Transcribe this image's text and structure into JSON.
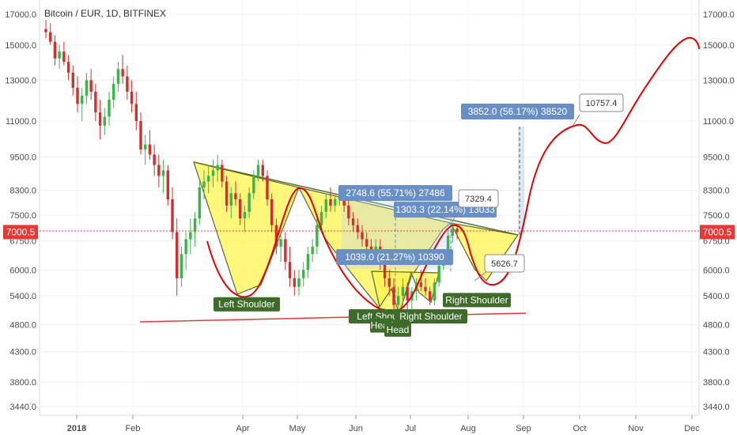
{
  "title": "Bitcoin / EUR, 1D, BITFINEX",
  "chart_data": {
    "type": "candlestick",
    "yticks": [
      "17000.0",
      "15000.0",
      "13000.0",
      "11000.0",
      "9500.0",
      "8300.0",
      "7500.0",
      "6750.0",
      "6000.0",
      "5400.0",
      "4800.0",
      "4300.0",
      "3800.0",
      "3440.0"
    ],
    "yvalues": [
      17000,
      15000,
      13000,
      11000,
      9500,
      8300,
      7500,
      6750,
      6000,
      5400,
      4800,
      4300,
      3800,
      3440
    ],
    "ylim": [
      3300,
      18000
    ],
    "yscale": "log",
    "xticks": [
      "2018",
      "Feb",
      "Apr",
      "May",
      "Jun",
      "Jul",
      "Aug",
      "Sep",
      "Oct",
      "Nov",
      "Dec"
    ],
    "price_label": "7000.5",
    "price": 7000.5,
    "candles": [
      [
        16000,
        16600,
        15400,
        15800
      ],
      [
        15800,
        16400,
        15000,
        15200
      ],
      [
        15200,
        15600,
        13800,
        14200
      ],
      [
        14200,
        15000,
        13600,
        14600
      ],
      [
        14600,
        15200,
        13800,
        14000
      ],
      [
        14000,
        14400,
        13000,
        13400
      ],
      [
        13400,
        13800,
        12200,
        12600
      ],
      [
        12600,
        13200,
        11400,
        11800
      ],
      [
        11800,
        12600,
        11000,
        12200
      ],
      [
        12200,
        13400,
        11800,
        13000
      ],
      [
        13000,
        13600,
        12000,
        12400
      ],
      [
        12400,
        12800,
        11000,
        11400
      ],
      [
        11400,
        12000,
        10200,
        10800
      ],
      [
        10800,
        11600,
        10400,
        11200
      ],
      [
        11200,
        12400,
        10800,
        12000
      ],
      [
        12000,
        13200,
        11600,
        12800
      ],
      [
        12800,
        14000,
        12400,
        13600
      ],
      [
        13600,
        14400,
        12800,
        13200
      ],
      [
        13200,
        13800,
        12000,
        12400
      ],
      [
        12400,
        13000,
        11400,
        11800
      ],
      [
        11800,
        12400,
        10600,
        11000
      ],
      [
        11000,
        11400,
        9600,
        9800
      ],
      [
        9800,
        10400,
        9200,
        10000
      ],
      [
        10000,
        10600,
        9400,
        9600
      ],
      [
        9600,
        10000,
        8800,
        9200
      ],
      [
        9200,
        9600,
        8400,
        8800
      ],
      [
        8800,
        9400,
        8200,
        9000
      ],
      [
        9000,
        9200,
        7800,
        8000
      ],
      [
        8000,
        8400,
        6800,
        7000
      ],
      [
        7000,
        7400,
        5400,
        5800
      ],
      [
        5800,
        6600,
        5600,
        6400
      ],
      [
        6400,
        7000,
        6000,
        6800
      ],
      [
        6800,
        7400,
        6400,
        7000
      ],
      [
        7000,
        7600,
        6600,
        7400
      ],
      [
        7400,
        8600,
        7200,
        8400
      ],
      [
        8400,
        9000,
        8000,
        8600
      ],
      [
        8600,
        9200,
        8200,
        8800
      ],
      [
        8800,
        9400,
        8400,
        9000
      ],
      [
        9000,
        9600,
        8600,
        9200
      ],
      [
        9200,
        9400,
        8400,
        8600
      ],
      [
        8600,
        8800,
        7600,
        7800
      ],
      [
        7800,
        8400,
        7400,
        8200
      ],
      [
        8200,
        8600,
        7800,
        8000
      ],
      [
        8000,
        8200,
        7200,
        7400
      ],
      [
        7400,
        7800,
        7000,
        7600
      ],
      [
        7600,
        8400,
        7400,
        8200
      ],
      [
        8200,
        9000,
        8000,
        8800
      ],
      [
        8800,
        9400,
        8600,
        9200
      ],
      [
        9200,
        9400,
        8600,
        8800
      ],
      [
        8800,
        9000,
        7800,
        8000
      ],
      [
        8000,
        8200,
        7000,
        7200
      ],
      [
        7200,
        7400,
        6400,
        6600
      ],
      [
        6600,
        7000,
        6200,
        6800
      ],
      [
        6800,
        7000,
        6000,
        6200
      ],
      [
        6200,
        6600,
        5600,
        5800
      ],
      [
        5800,
        6000,
        5400,
        5600
      ],
      [
        5600,
        6000,
        5400,
        5800
      ],
      [
        5800,
        6200,
        5600,
        6000
      ],
      [
        6000,
        6600,
        5800,
        6400
      ],
      [
        6400,
        6800,
        6200,
        6600
      ],
      [
        6600,
        7400,
        6400,
        7200
      ],
      [
        7200,
        7800,
        7000,
        7600
      ],
      [
        7600,
        8200,
        7400,
        8000
      ],
      [
        8000,
        8400,
        7600,
        7800
      ],
      [
        7800,
        8200,
        7600,
        8000
      ],
      [
        8000,
        8400,
        7800,
        8200
      ],
      [
        8200,
        8300,
        7600,
        7800
      ],
      [
        7800,
        8000,
        7200,
        7400
      ],
      [
        7400,
        7600,
        7000,
        7200
      ],
      [
        7200,
        7400,
        6800,
        7000
      ],
      [
        7000,
        7200,
        6600,
        6800
      ],
      [
        6800,
        7000,
        6400,
        6600
      ],
      [
        6600,
        6800,
        6200,
        6400
      ],
      [
        6400,
        6800,
        6200,
        6600
      ],
      [
        6600,
        6800,
        6000,
        6200
      ],
      [
        6200,
        6400,
        5600,
        5800
      ],
      [
        5800,
        6000,
        5400,
        5600
      ],
      [
        5600,
        5800,
        5000,
        5200
      ],
      [
        5200,
        5600,
        5000,
        5400
      ],
      [
        5400,
        5800,
        5200,
        5600
      ],
      [
        5600,
        5700,
        5100,
        5300
      ],
      [
        5300,
        5600,
        5000,
        5500
      ],
      [
        5500,
        5800,
        5300,
        5700
      ],
      [
        5700,
        6000,
        5500,
        5600
      ],
      [
        5600,
        5800,
        5400,
        5500
      ],
      [
        5500,
        5600,
        5200,
        5300
      ],
      [
        5300,
        5800,
        5200,
        5700
      ],
      [
        5700,
        6200,
        5600,
        6100
      ],
      [
        6100,
        6500,
        6000,
        6400
      ],
      [
        6400,
        7000,
        6300,
        6900
      ],
      [
        6900,
        7300,
        6700,
        7100
      ],
      [
        7100,
        7200,
        6800,
        7000
      ]
    ],
    "annotations": [
      {
        "text": "Left Shoulder",
        "value": 5200
      },
      {
        "text": "Left Shoulder",
        "value": 4950
      },
      {
        "text": "Head",
        "value": 4770
      },
      {
        "text": "Head",
        "value": 4690
      },
      {
        "text": "Right Shoulder",
        "value": 4950
      },
      {
        "text": "Right Shoulder",
        "value": 5290
      }
    ],
    "measures": [
      {
        "text": "2748.6 (55.71%) 27486"
      },
      {
        "text": "1303.3 (22.14%) 13033"
      },
      {
        "text": "1039.0 (21.27%) 10390"
      },
      {
        "text": "3852.0 (56.17%) 38520"
      }
    ],
    "callouts": [
      {
        "text": "10757.4"
      },
      {
        "text": "7329.4"
      },
      {
        "text": "5626.7"
      }
    ],
    "colors": {
      "up": "#26a69a",
      "up_fill": "#3bb54a",
      "down": "#d32f2f",
      "pattern_fill": "#fff44f",
      "pattern_stroke": "#556b2f",
      "projection": "#e00000",
      "label_green": "#3e6b2a",
      "label_blue": "#6a8fc7",
      "price_tag": "#e53935"
    }
  }
}
